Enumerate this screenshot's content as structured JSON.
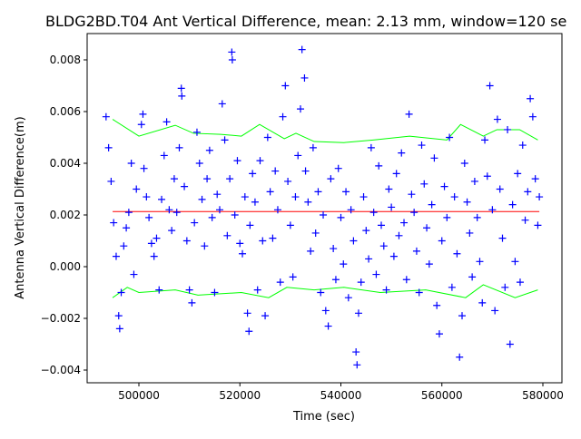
{
  "chart_data": {
    "type": "scatter",
    "title": "BLDG2BD.T04 Ant Vertical Difference, mean: 2.13 mm, window=120 se",
    "xlabel": "Time (sec)",
    "ylabel": "Antenna Vertical Difference(m)",
    "xlim": [
      490000,
      584000
    ],
    "ylim": [
      -0.0045,
      0.0091
    ],
    "xticks": [
      500000,
      520000,
      540000,
      560000,
      580000
    ],
    "xtick_labels": [
      "500000",
      "520000",
      "540000",
      "560000",
      "580000"
    ],
    "yticks": [
      -0.004,
      -0.002,
      0.0,
      0.002,
      0.004,
      0.006,
      0.008
    ],
    "ytick_labels": [
      "−0.004",
      "−0.002",
      "0.000",
      "0.002",
      "0.004",
      "0.006",
      "0.008"
    ],
    "grid": false,
    "mean": 0.00213,
    "colors": {
      "points": "#0000ff",
      "mean": "#ff0000",
      "band": "#00ff00"
    },
    "points": [
      [
        493500,
        0.0058
      ],
      [
        494000,
        0.0046
      ],
      [
        494500,
        0.0033
      ],
      [
        495000,
        0.0017
      ],
      [
        495500,
        0.0004
      ],
      [
        496000,
        -0.0019
      ],
      [
        496200,
        -0.0024
      ],
      [
        496500,
        -0.001
      ],
      [
        497000,
        0.0008
      ],
      [
        497500,
        0.0015
      ],
      [
        498000,
        0.0021
      ],
      [
        498500,
        0.004
      ],
      [
        499000,
        -0.0003
      ],
      [
        499500,
        0.003
      ],
      [
        500500,
        0.0055
      ],
      [
        500800,
        0.0059
      ],
      [
        501000,
        0.0038
      ],
      [
        501500,
        0.0027
      ],
      [
        502000,
        0.0019
      ],
      [
        502500,
        0.0009
      ],
      [
        503000,
        0.0004
      ],
      [
        503500,
        0.0011
      ],
      [
        504000,
        -0.0009
      ],
      [
        504500,
        0.0026
      ],
      [
        505000,
        0.0043
      ],
      [
        505500,
        0.0056
      ],
      [
        506000,
        0.0022
      ],
      [
        506500,
        0.0014
      ],
      [
        507000,
        0.0034
      ],
      [
        507500,
        0.0021
      ],
      [
        508000,
        0.0046
      ],
      [
        508400,
        0.0069
      ],
      [
        508500,
        0.0066
      ],
      [
        509000,
        0.0031
      ],
      [
        509500,
        0.001
      ],
      [
        510000,
        -0.0009
      ],
      [
        510500,
        -0.0014
      ],
      [
        511000,
        0.0017
      ],
      [
        511500,
        0.0052
      ],
      [
        512000,
        0.004
      ],
      [
        512500,
        0.0026
      ],
      [
        513000,
        0.0008
      ],
      [
        513500,
        0.0034
      ],
      [
        514000,
        0.0045
      ],
      [
        514500,
        0.0019
      ],
      [
        515000,
        -0.001
      ],
      [
        515500,
        0.0028
      ],
      [
        516000,
        0.0022
      ],
      [
        516500,
        0.0063
      ],
      [
        517000,
        0.0049
      ],
      [
        517500,
        0.0012
      ],
      [
        518000,
        0.0034
      ],
      [
        518400,
        0.0083
      ],
      [
        518500,
        0.008
      ],
      [
        519000,
        0.002
      ],
      [
        519500,
        0.0041
      ],
      [
        520000,
        0.0009
      ],
      [
        520500,
        0.0005
      ],
      [
        521000,
        0.0027
      ],
      [
        521500,
        -0.0018
      ],
      [
        521800,
        -0.0025
      ],
      [
        522000,
        0.0016
      ],
      [
        522500,
        0.0036
      ],
      [
        523000,
        0.0025
      ],
      [
        523500,
        -0.0009
      ],
      [
        524000,
        0.0041
      ],
      [
        524500,
        0.001
      ],
      [
        525000,
        -0.0019
      ],
      [
        525500,
        0.005
      ],
      [
        526000,
        0.0029
      ],
      [
        526500,
        0.0011
      ],
      [
        527000,
        0.0037
      ],
      [
        527500,
        0.0022
      ],
      [
        528000,
        -0.0006
      ],
      [
        528500,
        0.0058
      ],
      [
        529000,
        0.007
      ],
      [
        529500,
        0.0033
      ],
      [
        530000,
        0.0016
      ],
      [
        530500,
        -0.0004
      ],
      [
        531000,
        0.0027
      ],
      [
        531500,
        0.0043
      ],
      [
        532000,
        0.0061
      ],
      [
        532300,
        0.0084
      ],
      [
        532800,
        0.0073
      ],
      [
        533000,
        0.0037
      ],
      [
        533500,
        0.0025
      ],
      [
        534000,
        0.0006
      ],
      [
        534500,
        0.0046
      ],
      [
        535000,
        0.0013
      ],
      [
        535500,
        0.0029
      ],
      [
        536000,
        -0.001
      ],
      [
        536500,
        0.002
      ],
      [
        537000,
        -0.0017
      ],
      [
        537500,
        -0.0023
      ],
      [
        538000,
        0.0034
      ],
      [
        538500,
        0.0007
      ],
      [
        539000,
        -0.0005
      ],
      [
        539500,
        0.0038
      ],
      [
        540000,
        0.0019
      ],
      [
        540500,
        0.0001
      ],
      [
        541000,
        0.0029
      ],
      [
        541500,
        -0.0012
      ],
      [
        542000,
        0.0022
      ],
      [
        542500,
        0.001
      ],
      [
        543000,
        -0.0033
      ],
      [
        543200,
        -0.0038
      ],
      [
        543500,
        -0.0018
      ],
      [
        544000,
        -0.0006
      ],
      [
        544500,
        0.0027
      ],
      [
        545000,
        0.0014
      ],
      [
        545500,
        0.0003
      ],
      [
        546000,
        0.0046
      ],
      [
        546500,
        0.0021
      ],
      [
        547000,
        -0.0003
      ],
      [
        547500,
        0.0039
      ],
      [
        548000,
        0.0016
      ],
      [
        548500,
        0.0008
      ],
      [
        549000,
        -0.0009
      ],
      [
        549500,
        0.003
      ],
      [
        550000,
        0.0023
      ],
      [
        550500,
        0.0004
      ],
      [
        551000,
        0.0036
      ],
      [
        551500,
        0.0012
      ],
      [
        552000,
        0.0044
      ],
      [
        552500,
        0.0017
      ],
      [
        553000,
        -0.0005
      ],
      [
        553500,
        0.0059
      ],
      [
        554000,
        0.0028
      ],
      [
        554500,
        0.0021
      ],
      [
        555000,
        0.0006
      ],
      [
        555500,
        -0.001
      ],
      [
        556000,
        0.0047
      ],
      [
        556500,
        0.0032
      ],
      [
        557000,
        0.0015
      ],
      [
        557500,
        0.0001
      ],
      [
        558000,
        0.0024
      ],
      [
        558500,
        0.0042
      ],
      [
        559000,
        -0.0015
      ],
      [
        559500,
        -0.0026
      ],
      [
        560000,
        0.001
      ],
      [
        560500,
        0.0031
      ],
      [
        561000,
        0.0019
      ],
      [
        561500,
        0.005
      ],
      [
        562000,
        -0.0008
      ],
      [
        562500,
        0.0027
      ],
      [
        563000,
        0.0005
      ],
      [
        563500,
        -0.0035
      ],
      [
        564000,
        -0.0019
      ],
      [
        564500,
        0.004
      ],
      [
        565000,
        0.0025
      ],
      [
        565500,
        0.0013
      ],
      [
        566000,
        -0.0004
      ],
      [
        566500,
        0.0033
      ],
      [
        567000,
        0.0019
      ],
      [
        567500,
        0.0002
      ],
      [
        568000,
        -0.0014
      ],
      [
        568500,
        0.0049
      ],
      [
        569000,
        0.0035
      ],
      [
        569500,
        0.007
      ],
      [
        570000,
        0.0022
      ],
      [
        570500,
        -0.0017
      ],
      [
        571000,
        0.0057
      ],
      [
        571500,
        0.003
      ],
      [
        572000,
        0.0011
      ],
      [
        572500,
        -0.0008
      ],
      [
        573000,
        0.0053
      ],
      [
        573500,
        -0.003
      ],
      [
        574000,
        0.0024
      ],
      [
        574500,
        0.0002
      ],
      [
        575000,
        0.0036
      ],
      [
        575500,
        -0.0006
      ],
      [
        576000,
        0.0047
      ],
      [
        576500,
        0.0018
      ],
      [
        577000,
        0.0029
      ],
      [
        577500,
        0.0065
      ],
      [
        578000,
        0.0058
      ],
      [
        578500,
        0.0034
      ],
      [
        579000,
        0.0016
      ],
      [
        579300,
        0.0027
      ]
    ],
    "upper_band": [
      [
        494800,
        0.0057
      ],
      [
        500000,
        0.00505
      ],
      [
        507200,
        0.00547
      ],
      [
        510800,
        0.00516
      ],
      [
        516200,
        0.00512
      ],
      [
        520300,
        0.00505
      ],
      [
        523900,
        0.0055
      ],
      [
        528800,
        0.00495
      ],
      [
        531100,
        0.00516
      ],
      [
        534700,
        0.00484
      ],
      [
        540600,
        0.0048
      ],
      [
        546400,
        0.0049
      ],
      [
        553600,
        0.00505
      ],
      [
        561000,
        0.0049
      ],
      [
        563700,
        0.0055
      ],
      [
        568200,
        0.00505
      ],
      [
        570900,
        0.0053
      ],
      [
        575400,
        0.0053
      ],
      [
        579000,
        0.0049
      ]
    ],
    "lower_band": [
      [
        494800,
        -0.0012
      ],
      [
        497700,
        -0.0008
      ],
      [
        500000,
        -0.001
      ],
      [
        507200,
        -0.0009
      ],
      [
        511700,
        -0.0011
      ],
      [
        520300,
        -0.001
      ],
      [
        525700,
        -0.0012
      ],
      [
        529300,
        -0.0008
      ],
      [
        534700,
        -0.0009
      ],
      [
        540600,
        -0.0008
      ],
      [
        547800,
        -0.001
      ],
      [
        556800,
        -0.0009
      ],
      [
        564700,
        -0.0012
      ],
      [
        568200,
        -0.0007
      ],
      [
        574500,
        -0.0012
      ],
      [
        579000,
        -0.0009
      ]
    ]
  }
}
